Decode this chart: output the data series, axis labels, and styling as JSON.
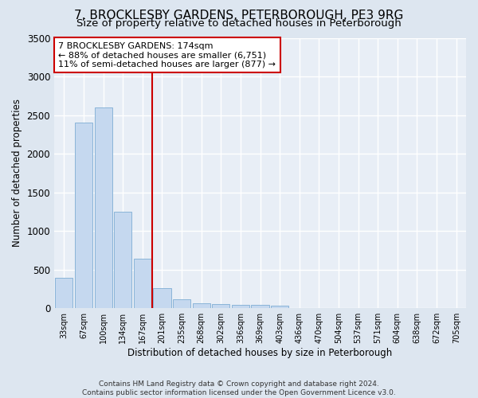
{
  "title": "7, BROCKLESBY GARDENS, PETERBOROUGH, PE3 9RG",
  "subtitle": "Size of property relative to detached houses in Peterborough",
  "xlabel": "Distribution of detached houses by size in Peterborough",
  "ylabel": "Number of detached properties",
  "footer_line1": "Contains HM Land Registry data © Crown copyright and database right 2024.",
  "footer_line2": "Contains public sector information licensed under the Open Government Licence v3.0.",
  "categories": [
    "33sqm",
    "67sqm",
    "100sqm",
    "134sqm",
    "167sqm",
    "201sqm",
    "235sqm",
    "268sqm",
    "302sqm",
    "336sqm",
    "369sqm",
    "403sqm",
    "436sqm",
    "470sqm",
    "504sqm",
    "537sqm",
    "571sqm",
    "604sqm",
    "638sqm",
    "672sqm",
    "705sqm"
  ],
  "values": [
    390,
    2400,
    2600,
    1250,
    640,
    260,
    115,
    65,
    55,
    45,
    40,
    35,
    0,
    0,
    0,
    0,
    0,
    0,
    0,
    0,
    0
  ],
  "bar_color": "#c5d8ef",
  "bar_edge_color": "#8ab4d8",
  "property_line_x": 4.5,
  "annotation_text": "7 BROCKLESBY GARDENS: 174sqm\n← 88% of detached houses are smaller (6,751)\n11% of semi-detached houses are larger (877) →",
  "annotation_box_color": "white",
  "annotation_box_edge_color": "#cc0000",
  "line_color": "#cc0000",
  "ylim": [
    0,
    3500
  ],
  "yticks": [
    0,
    500,
    1000,
    1500,
    2000,
    2500,
    3000,
    3500
  ],
  "background_color": "#dde6f0",
  "plot_background_color": "#e8eef6",
  "grid_color": "white",
  "title_fontsize": 11,
  "subtitle_fontsize": 9.5,
  "annotation_fontsize": 8.0
}
